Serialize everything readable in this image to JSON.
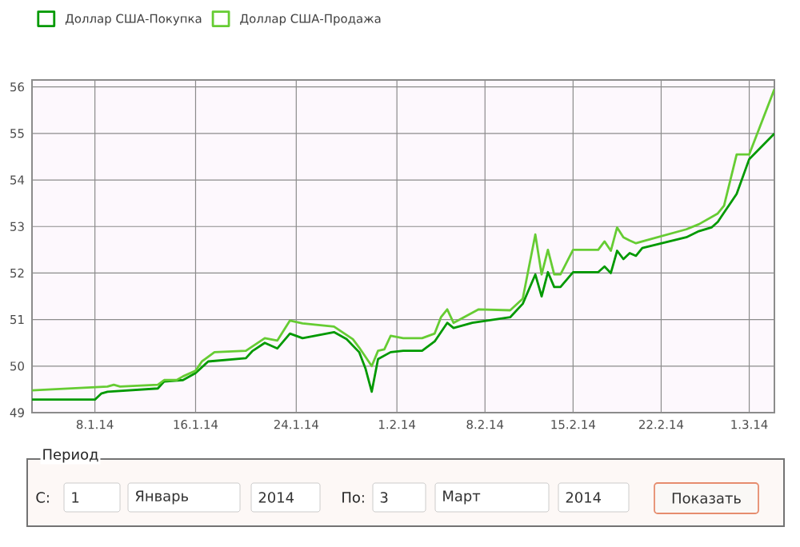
{
  "chart_data": {
    "type": "line",
    "xlim": [
      "2014-01-03",
      "2014-03-03"
    ],
    "ylim": [
      49,
      56.15
    ],
    "xticks": [
      {
        "value": "2014-01-08",
        "label": "8.1.14"
      },
      {
        "value": "2014-01-16",
        "label": "16.1.14"
      },
      {
        "value": "2014-01-24",
        "label": "24.1.14"
      },
      {
        "value": "2014-02-01",
        "label": "1.2.14"
      },
      {
        "value": "2014-02-08",
        "label": "8.2.14"
      },
      {
        "value": "2014-02-15",
        "label": "15.2.14"
      },
      {
        "value": "2014-02-22",
        "label": "22.2.14"
      },
      {
        "value": "2014-03-01",
        "label": "1.3.14"
      }
    ],
    "yticks": [
      49,
      50,
      51,
      52,
      53,
      54,
      55,
      56
    ],
    "grid": true,
    "legend": "top left",
    "series": [
      {
        "name": "Доллар США-Покупка",
        "color": "#009900",
        "x": [
          "2014-01-03",
          "2014-01-08",
          "2014-01-08T12:00",
          "2014-01-09",
          "2014-01-13",
          "2014-01-13T12:00",
          "2014-01-15",
          "2014-01-16",
          "2014-01-17",
          "2014-01-20",
          "2014-01-20T12:00",
          "2014-01-21T12:00",
          "2014-01-22T12:00",
          "2014-01-23T12:00",
          "2014-01-24T12:00",
          "2014-01-27",
          "2014-01-28",
          "2014-01-29",
          "2014-01-29T12:00",
          "2014-01-30",
          "2014-01-30T12:00",
          "2014-01-31T12:00",
          "2014-02-01T12:00",
          "2014-02-03",
          "2014-02-04",
          "2014-02-05",
          "2014-02-05T12:00",
          "2014-02-07",
          "2014-02-10",
          "2014-02-11",
          "2014-02-12",
          "2014-02-12T12:00",
          "2014-02-13",
          "2014-02-13T12:00",
          "2014-02-14",
          "2014-02-15",
          "2014-02-17",
          "2014-02-17T12:00",
          "2014-02-18",
          "2014-02-18T12:00",
          "2014-02-19",
          "2014-02-19T12:00",
          "2014-02-20",
          "2014-02-20T12:00",
          "2014-02-24",
          "2014-02-25",
          "2014-02-26",
          "2014-02-26T12:00",
          "2014-02-27",
          "2014-02-28",
          "2014-03-01",
          "2014-03-03"
        ],
        "values": [
          49.28,
          49.28,
          49.41,
          49.45,
          49.52,
          49.67,
          49.7,
          49.85,
          50.1,
          50.17,
          50.32,
          50.5,
          50.38,
          50.7,
          50.6,
          50.73,
          50.58,
          50.3,
          49.95,
          49.45,
          50.15,
          50.3,
          50.33,
          50.33,
          50.53,
          50.93,
          50.82,
          50.93,
          51.05,
          51.34,
          51.97,
          51.5,
          52.02,
          51.7,
          51.7,
          52.02,
          52.02,
          52.14,
          52.0,
          52.48,
          52.3,
          52.43,
          52.37,
          52.54,
          52.77,
          52.9,
          52.98,
          53.1,
          53.3,
          53.7,
          54.45,
          55.0
        ]
      },
      {
        "name": "Доллар США-Продажа",
        "color": "#66cc33",
        "x": [
          "2014-01-03",
          "2014-01-09",
          "2014-01-09T12:00",
          "2014-01-10",
          "2014-01-13",
          "2014-01-13T12:00",
          "2014-01-14T12:00",
          "2014-01-15",
          "2014-01-16",
          "2014-01-16T12:00",
          "2014-01-17T12:00",
          "2014-01-20",
          "2014-01-21T12:00",
          "2014-01-22T12:00",
          "2014-01-23T12:00",
          "2014-01-24T12:00",
          "2014-01-27",
          "2014-01-28T12:00",
          "2014-01-29",
          "2014-01-30",
          "2014-01-30T12:00",
          "2014-01-31",
          "2014-01-31T12:00",
          "2014-02-01T12:00",
          "2014-02-03",
          "2014-02-04",
          "2014-02-04T12:00",
          "2014-02-05",
          "2014-02-05T12:00",
          "2014-02-07T12:00",
          "2014-02-10",
          "2014-02-11",
          "2014-02-12",
          "2014-02-12T12:00",
          "2014-02-13",
          "2014-02-13T12:00",
          "2014-02-14",
          "2014-02-15",
          "2014-02-17",
          "2014-02-17T12:00",
          "2014-02-18",
          "2014-02-18T12:00",
          "2014-02-19",
          "2014-02-19T12:00",
          "2014-02-20",
          "2014-02-20T12:00",
          "2014-02-24",
          "2014-02-25",
          "2014-02-26T12:00",
          "2014-02-27",
          "2014-02-28",
          "2014-03-01",
          "2014-03-03"
        ],
        "values": [
          49.48,
          49.56,
          49.6,
          49.56,
          49.6,
          49.7,
          49.7,
          49.78,
          49.9,
          50.1,
          50.3,
          50.33,
          50.6,
          50.55,
          50.98,
          50.92,
          50.85,
          50.58,
          50.4,
          50.0,
          50.33,
          50.36,
          50.65,
          50.6,
          50.6,
          50.7,
          51.05,
          51.22,
          50.93,
          51.22,
          51.2,
          51.45,
          52.83,
          51.97,
          52.5,
          51.97,
          51.97,
          52.5,
          52.5,
          52.68,
          52.48,
          52.98,
          52.77,
          52.7,
          52.64,
          52.68,
          52.94,
          53.05,
          53.28,
          53.45,
          54.55,
          54.55,
          55.95
        ]
      }
    ],
    "annotations": [
      "Период",
      "С:",
      "1",
      "Январь",
      "2014",
      "По:",
      "3",
      "Март",
      "2014",
      "Показать"
    ]
  }
}
